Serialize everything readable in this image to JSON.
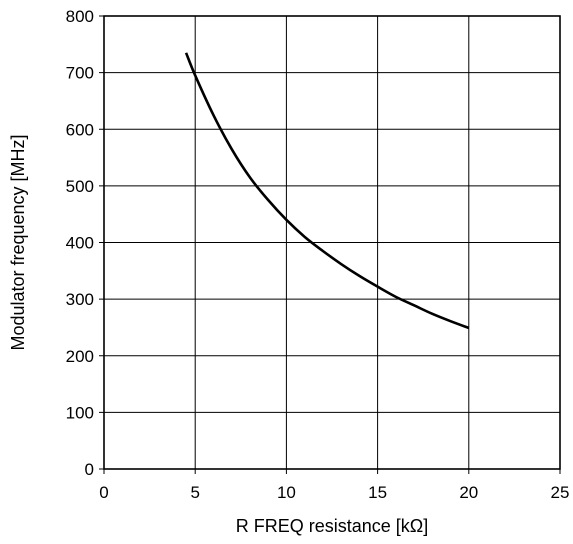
{
  "chart_data": {
    "type": "line",
    "title": "",
    "xlabel": "R FREQ resistance [kΩ]",
    "ylabel": "Modulator frequency [MHz]",
    "xlim": [
      0,
      25
    ],
    "ylim": [
      0,
      800
    ],
    "x_ticks": [
      0,
      5,
      10,
      15,
      20,
      25
    ],
    "y_ticks": [
      0,
      100,
      200,
      300,
      400,
      500,
      600,
      700,
      800
    ],
    "x_tick_labels": [
      "0",
      "5",
      "10",
      "15",
      "20",
      "25"
    ],
    "y_tick_labels": [
      "0",
      "100",
      "200",
      "300",
      "400",
      "500",
      "600",
      "700",
      "800"
    ],
    "grid": true,
    "series": [
      {
        "x": [
          4.5,
          5,
          6,
          7,
          8,
          9,
          10,
          11,
          12,
          13,
          14,
          15,
          16,
          17,
          18,
          19,
          20
        ],
        "y": [
          735,
          695,
          625,
          565,
          515,
          475,
          440,
          410,
          385,
          362,
          341,
          322,
          304,
          289,
          274,
          261,
          249
        ]
      }
    ]
  }
}
